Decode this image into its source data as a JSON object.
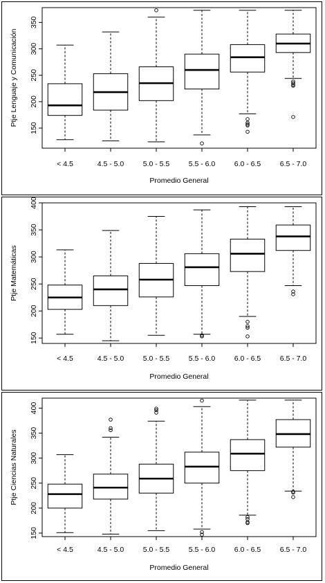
{
  "chart_data": [
    {
      "type": "boxplot",
      "title": "",
      "xlabel": "Promedio General",
      "ylabel": "Ptje Lenguaje y Comunicación",
      "ylim": [
        112,
        378
      ],
      "yticks": [
        150,
        200,
        250,
        300,
        350
      ],
      "grid": false,
      "categories": [
        "< 4.5",
        "4.5 - 5.0",
        "5.0 - 5.5",
        "5.5 - 6.0",
        "6.0 - 6.5",
        "6.5 - 7.0"
      ],
      "boxes": [
        {
          "whisker_low": 128,
          "q1": 174,
          "median": 193,
          "q3": 234,
          "whisker_high": 307,
          "outliers": []
        },
        {
          "whisker_low": 126,
          "q1": 184,
          "median": 218,
          "q3": 253,
          "whisker_high": 332,
          "outliers": []
        },
        {
          "whisker_low": 124,
          "q1": 202,
          "median": 235,
          "q3": 266,
          "whisker_high": 360,
          "outliers": [
            373
          ]
        },
        {
          "whisker_low": 137,
          "q1": 224,
          "median": 260,
          "q3": 290,
          "whisker_high": 373,
          "outliers": [
            121
          ]
        },
        {
          "whisker_low": 177,
          "q1": 256,
          "median": 284,
          "q3": 308,
          "whisker_high": 373,
          "outliers": [
            167,
            160,
            157,
            155,
            143
          ]
        },
        {
          "whisker_low": 244,
          "q1": 293,
          "median": 310,
          "q3": 328,
          "whisker_high": 373,
          "outliers": [
            238,
            235,
            232,
            230,
            171
          ]
        }
      ]
    },
    {
      "type": "boxplot",
      "title": "",
      "xlabel": "Promedio General",
      "ylabel": "Ptje Matemáticas",
      "ylim": [
        140,
        400
      ],
      "yticks": [
        150,
        200,
        250,
        300,
        350,
        400
      ],
      "grid": false,
      "categories": [
        "< 4.5",
        "4.5 - 5.0",
        "5.0 - 5.5",
        "5.5 - 6.0",
        "6.0 - 6.5",
        "6.5 - 7.0"
      ],
      "boxes": [
        {
          "whisker_low": 157,
          "q1": 203,
          "median": 225,
          "q3": 248,
          "whisker_high": 313,
          "outliers": []
        },
        {
          "whisker_low": 145,
          "q1": 210,
          "median": 240,
          "q3": 265,
          "whisker_high": 349,
          "outliers": []
        },
        {
          "whisker_low": 155,
          "q1": 226,
          "median": 258,
          "q3": 288,
          "whisker_high": 375,
          "outliers": []
        },
        {
          "whisker_low": 157,
          "q1": 247,
          "median": 281,
          "q3": 306,
          "whisker_high": 387,
          "outliers": [
            155,
            153
          ]
        },
        {
          "whisker_low": 190,
          "q1": 273,
          "median": 306,
          "q3": 333,
          "whisker_high": 393,
          "outliers": [
            180,
            172,
            169,
            153
          ]
        },
        {
          "whisker_low": 247,
          "q1": 312,
          "median": 338,
          "q3": 359,
          "whisker_high": 393,
          "outliers": [
            236,
            231
          ]
        }
      ]
    },
    {
      "type": "boxplot",
      "title": "",
      "xlabel": "Promedio General",
      "ylabel": "Ptje Ciencias Naturales",
      "ylim": [
        143,
        420
      ],
      "yticks": [
        150,
        200,
        250,
        300,
        350,
        400
      ],
      "grid": false,
      "categories": [
        "< 4.5",
        "4.5 - 5.0",
        "5.0 - 5.5",
        "5.5 - 6.0",
        "6.0 - 6.5",
        "6.5 - 7.0"
      ],
      "boxes": [
        {
          "whisker_low": 151,
          "q1": 200,
          "median": 228,
          "q3": 248,
          "whisker_high": 307,
          "outliers": []
        },
        {
          "whisker_low": 148,
          "q1": 218,
          "median": 241,
          "q3": 268,
          "whisker_high": 342,
          "outliers": [
            377,
            360,
            356
          ]
        },
        {
          "whisker_low": 155,
          "q1": 230,
          "median": 259,
          "q3": 288,
          "whisker_high": 374,
          "outliers": [
            399,
            396,
            391
          ]
        },
        {
          "whisker_low": 158,
          "q1": 250,
          "median": 283,
          "q3": 312,
          "whisker_high": 403,
          "outliers": [
            415,
            152,
            147
          ]
        },
        {
          "whisker_low": 186,
          "q1": 275,
          "median": 309,
          "q3": 337,
          "whisker_high": 416,
          "outliers": [
            182,
            178,
            172,
            170
          ]
        },
        {
          "whisker_low": 234,
          "q1": 322,
          "median": 348,
          "q3": 377,
          "whisker_high": 416,
          "outliers": [
            233,
            231,
            222
          ]
        }
      ]
    }
  ]
}
